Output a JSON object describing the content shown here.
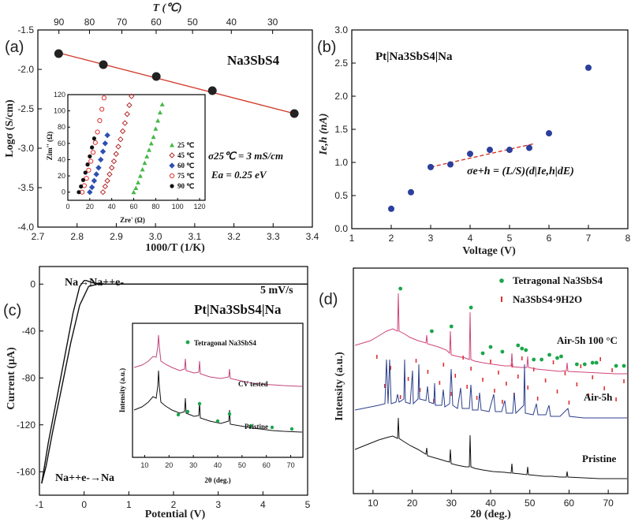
{
  "chart_data": [
    {
      "panel": "(a)",
      "type": "scatter",
      "title": "Na3SbS4",
      "xlabel": "1000/T (1/K)",
      "ylabel": "Logσ (S/cm)",
      "x2label": "T (℃)",
      "xlim": [
        2.7,
        3.4
      ],
      "ylim": [
        -4.0,
        -1.5
      ],
      "xticks": [
        "2.7",
        "2.8",
        "2.9",
        "3.0",
        "3.1",
        "3.2",
        "3.3",
        "3.4"
      ],
      "yticks": [
        "-1.5",
        "-2.0",
        "-2.5",
        "-3.0",
        "-3.5",
        "-4.0"
      ],
      "x2ticks": [
        "90",
        "80",
        "70",
        "60",
        "50",
        "40",
        "30"
      ],
      "x": [
        2.753,
        2.867,
        3.002,
        3.145,
        3.354
      ],
      "y": [
        -1.8,
        -1.94,
        -2.09,
        -2.27,
        -2.56
      ],
      "fit_line": [
        [
          2.753,
          -1.79
        ],
        [
          3.354,
          -2.56
        ]
      ],
      "annotation_sigma": "σ25℃ = 3 mS/cm",
      "annotation_ea": "Ea = 0.25 eV",
      "inset": {
        "type": "scatter",
        "xlabel": "Zre' (Ω)",
        "ylabel": "Zim'' (Ω)",
        "xlim": [
          0,
          125
        ],
        "ylim": [
          -10,
          120
        ],
        "xticks": [
          "0",
          "20",
          "40",
          "60",
          "80",
          "100",
          "120"
        ],
        "yticks": [
          "0",
          "20",
          "40",
          "60",
          "80",
          "100",
          "120"
        ],
        "series": [
          {
            "name": "25 ℃",
            "color": "#44b844",
            "x": [
              60,
              62,
              64,
              66,
              68,
              70,
              72,
              74,
              76,
              78,
              80,
              82,
              84,
              86
            ],
            "y": [
              0,
              5,
              12,
              20,
              28,
              36,
              44,
              52,
              60,
              68,
              78,
              88,
              98,
              108
            ]
          },
          {
            "name": "45 ℃",
            "color": "#b52a2a",
            "x": [
              32,
              34,
              36,
              38,
              40,
              42,
              44,
              46,
              48,
              50,
              52,
              54,
              56,
              58
            ],
            "y": [
              0,
              7,
              14,
              22,
              30,
              38,
              47,
              56,
              65,
              75,
              85,
              96,
              107,
              118
            ]
          },
          {
            "name": "60 ℃",
            "color": "#3050b0",
            "x": [
              20,
              22,
              24,
              26,
              28,
              30,
              32,
              34,
              36
            ],
            "y": [
              0,
              6,
              14,
              22,
              30,
              40,
              50,
              60,
              70
            ]
          },
          {
            "name": "75 ℃",
            "color": "#e03030",
            "x": [
              13,
              15,
              17,
              19,
              21,
              23,
              25,
              27,
              29,
              31,
              33
            ],
            "y": [
              0,
              8,
              17,
              27,
              38,
              49,
              61,
              74,
              88,
              102,
              116
            ]
          },
          {
            "name": "90 ℃",
            "color": "#111111",
            "x": [
              10,
              12,
              14,
              16,
              18,
              20,
              22,
              24
            ],
            "y": [
              0,
              7,
              15,
              24,
              34,
              44,
              55,
              66
            ]
          }
        ]
      }
    },
    {
      "panel": "(b)",
      "type": "scatter",
      "title": "Pt|Na3SbS4|Na",
      "xlabel": "Voltage (V)",
      "ylabel": "Ie,h (nA)",
      "xlim": [
        1,
        8
      ],
      "ylim": [
        0,
        3.0
      ],
      "xticks": [
        "1",
        "2",
        "3",
        "4",
        "5",
        "6",
        "7",
        "8"
      ],
      "yticks": [
        "0.0",
        "0.5",
        "1.0",
        "1.5",
        "2.0",
        "2.5",
        "3.0"
      ],
      "x": [
        2.0,
        2.5,
        3.0,
        3.5,
        4.0,
        4.5,
        5.0,
        5.5,
        6.0,
        7.0
      ],
      "y": [
        0.3,
        0.55,
        0.93,
        0.97,
        1.13,
        1.19,
        1.19,
        1.22,
        1.44,
        2.43
      ],
      "fit_line": [
        [
          3.0,
          0.93
        ],
        [
          5.6,
          1.28
        ]
      ],
      "annotation": "σe+h = (L/S)(d|Ie,h|dE)"
    },
    {
      "panel": "(c)",
      "type": "line",
      "title": "Pt|Na3SbS4|Na",
      "xlabel": "Potential (V)",
      "ylabel": "Current (μA)",
      "xlim": [
        -1,
        5
      ],
      "ylim": [
        -180,
        15
      ],
      "xticks": [
        "-1",
        "0",
        "1",
        "2",
        "3",
        "4",
        "5"
      ],
      "yticks": [
        "0",
        "-40",
        "-80",
        "-120",
        "-160"
      ],
      "scan_rate": "5 mV/s",
      "oxidation_label": "Na→Na++e-",
      "reduction_label": "Na++e-→Na",
      "series": [
        {
          "name": "cathodic",
          "x": [
            5,
            1,
            0.3,
            0.1,
            -0.1,
            -0.3,
            -0.5,
            -0.7,
            -0.85,
            -0.95
          ],
          "y": [
            0,
            0,
            0,
            -2,
            -18,
            -50,
            -88,
            -125,
            -155,
            -170
          ]
        },
        {
          "name": "anodic",
          "x": [
            -0.95,
            -0.8,
            -0.6,
            -0.4,
            -0.25,
            -0.1,
            0.0,
            0.05,
            0.2,
            0.5,
            1,
            5
          ],
          "y": [
            -170,
            -135,
            -95,
            -55,
            -25,
            -2,
            3,
            3,
            1,
            0,
            0,
            0
          ]
        }
      ],
      "inset": {
        "xlabel": "2θ (deg.)",
        "ylabel": "Intensity (a.u.)",
        "xticks": [
          "10",
          "20",
          "30",
          "40",
          "50",
          "60",
          "70"
        ],
        "legend": "Tetragonal Na3SbS4",
        "patterns": [
          "CV tested",
          "Pristine"
        ]
      }
    },
    {
      "panel": "(d)",
      "type": "line",
      "xlabel": "2θ (deg.)",
      "ylabel": "Intensity (a.u.)",
      "xlim": [
        5,
        75
      ],
      "xticks": [
        "10",
        "20",
        "30",
        "40",
        "50",
        "60",
        "70"
      ],
      "legend": [
        "Tetragonal Na3SbS4",
        "Na3SbS4·9H2O"
      ],
      "patterns": [
        {
          "name": "Air-5h 100 °C",
          "color": "#d0457a"
        },
        {
          "name": "Air-5h",
          "color": "#2c3f8c"
        },
        {
          "name": "Pristine",
          "color": "#111111"
        }
      ]
    }
  ],
  "text": {
    "a_tag": "(a)",
    "b_tag": "(b)",
    "c_tag": "(c)",
    "d_tag": "(d)"
  }
}
